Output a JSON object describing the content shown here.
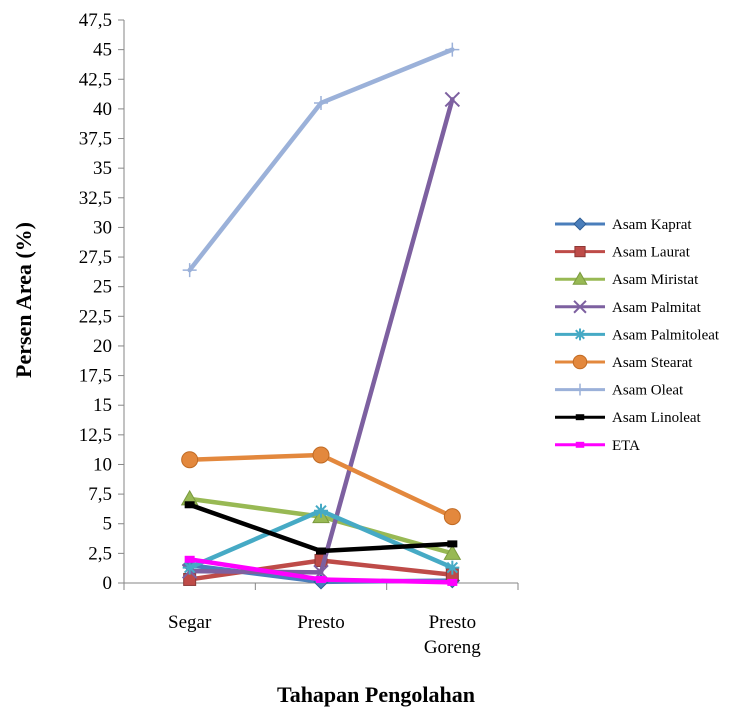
{
  "chart_data": {
    "type": "line",
    "categories": [
      "Segar",
      "Presto",
      "Presto\nGoreng"
    ],
    "xlabel": "Tahapan Pengolahan",
    "ylabel": "Persen Area (%)",
    "ylim": [
      0,
      47.5
    ],
    "ytick_step": 2.5,
    "grid": false,
    "legend": "right",
    "series": [
      {
        "name": "Asam Kaprat",
        "values": [
          1.5,
          0.1,
          0.2
        ],
        "color": "#4a7ebb",
        "marker": "diamond"
      },
      {
        "name": "Asam Laurat",
        "values": [
          0.3,
          1.9,
          0.7
        ],
        "color": "#be4b48",
        "marker": "square"
      },
      {
        "name": "Asam Miristat",
        "values": [
          7.1,
          5.6,
          2.5
        ],
        "color": "#98b954",
        "marker": "triangle"
      },
      {
        "name": "Asam Palmitat",
        "values": [
          1.0,
          0.9,
          40.8
        ],
        "color": "#7d60a0",
        "marker": "x"
      },
      {
        "name": "Asam Palmitoleat",
        "values": [
          1.3,
          6.1,
          1.3
        ],
        "color": "#46aac5",
        "marker": "star"
      },
      {
        "name": "Asam Stearat",
        "values": [
          10.4,
          10.8,
          5.6
        ],
        "color": "#e3883d",
        "marker": "circle"
      },
      {
        "name": "Asam Oleat",
        "values": [
          26.4,
          40.5,
          45.0
        ],
        "color": "#9bb1d9",
        "marker": "plus"
      },
      {
        "name": "Asam Linoleat",
        "values": [
          6.6,
          2.7,
          3.3
        ],
        "color": "#000000",
        "marker": "dash"
      },
      {
        "name": "ETA",
        "values": [
          2.0,
          0.3,
          0.05
        ],
        "color": "#ff00ff",
        "marker": "dash"
      }
    ]
  }
}
